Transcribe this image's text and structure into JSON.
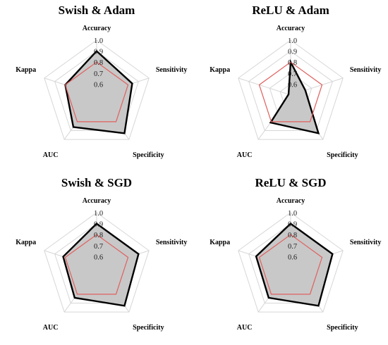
{
  "chart_data": [
    {
      "type": "radar",
      "title": "Swish & Adam",
      "axes": [
        "Accuracy",
        "Sensitivity",
        "Specificity",
        "AUC",
        "Kappa"
      ],
      "ticks": [
        "1.0",
        "0.9",
        "0.8",
        "0.7",
        "0.6"
      ],
      "range": [
        0.5,
        1.0
      ],
      "grid": true,
      "series": [
        {
          "values": [
            0.9,
            0.84,
            0.93,
            0.86,
            0.8
          ],
          "color": "#000000",
          "fill": "#c8c8c8"
        },
        {
          "values": [
            0.8,
            0.8,
            0.8,
            0.8,
            0.8
          ],
          "color": "#e0605e",
          "fill": "none"
        }
      ]
    },
    {
      "type": "radar",
      "title": "ReLU & Adam",
      "axes": [
        "Accuracy",
        "Sensitivity",
        "Specificity",
        "AUC",
        "Kappa"
      ],
      "ticks": [
        "1.0",
        "0.9",
        "0.8",
        "0.7",
        "0.6"
      ],
      "range": [
        0.5,
        1.0
      ],
      "grid": true,
      "series": [
        {
          "values": [
            0.8,
            0.64,
            0.93,
            0.81,
            0.52
          ],
          "color": "#000000",
          "fill": "#c8c8c8"
        },
        {
          "values": [
            0.8,
            0.8,
            0.8,
            0.8,
            0.8
          ],
          "color": "#e0605e",
          "fill": "none"
        }
      ]
    },
    {
      "type": "radar",
      "title": "Swish & SGD",
      "axes": [
        "Accuracy",
        "Sensitivity",
        "Specificity",
        "AUC",
        "Kappa"
      ],
      "ticks": [
        "1.0",
        "0.9",
        "0.8",
        "0.7",
        "0.6"
      ],
      "range": [
        0.5,
        1.0
      ],
      "grid": true,
      "series": [
        {
          "values": [
            0.9,
            0.9,
            0.93,
            0.84,
            0.82
          ],
          "color": "#000000",
          "fill": "#c8c8c8"
        },
        {
          "values": [
            0.8,
            0.8,
            0.8,
            0.8,
            0.8
          ],
          "color": "#e0605e",
          "fill": "none"
        }
      ]
    },
    {
      "type": "radar",
      "title": "ReLU & SGD",
      "axes": [
        "Accuracy",
        "Sensitivity",
        "Specificity",
        "AUC",
        "Kappa"
      ],
      "ticks": [
        "1.0",
        "0.9",
        "0.8",
        "0.7",
        "0.6"
      ],
      "range": [
        0.5,
        1.0
      ],
      "grid": true,
      "series": [
        {
          "values": [
            0.9,
            0.9,
            0.93,
            0.84,
            0.83
          ],
          "color": "#000000",
          "fill": "#c8c8c8"
        },
        {
          "values": [
            0.8,
            0.8,
            0.8,
            0.8,
            0.8
          ],
          "color": "#e0605e",
          "fill": "none"
        }
      ]
    }
  ]
}
